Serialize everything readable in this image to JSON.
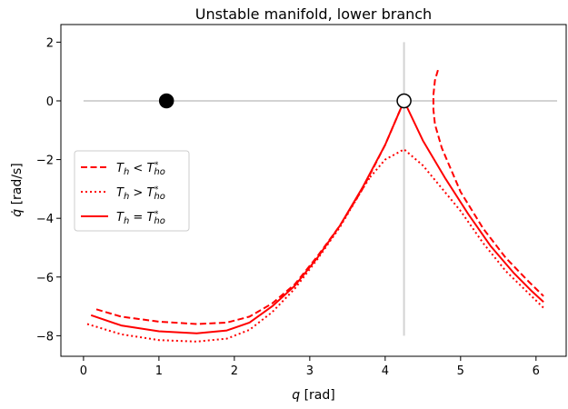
{
  "chart_data": {
    "type": "line",
    "title": "Unstable manifold, lower branch",
    "xlabel_var": "q",
    "xlabel_unit": "[rad]",
    "ylabel_var": "q̇",
    "ylabel_unit": "[rad/s]",
    "xlim": [
      -0.3,
      6.4
    ],
    "ylim": [
      -8.7,
      2.6
    ],
    "xticks": [
      0,
      1,
      2,
      3,
      4,
      5,
      6
    ],
    "yticks": [
      2,
      0,
      -2,
      -4,
      -6,
      -8
    ],
    "ytick_labels": [
      "2",
      "0",
      "−2",
      "−4",
      "−6",
      "−8"
    ],
    "grid": false,
    "legend_position": "center-left",
    "reference_lines": {
      "color": "#d3d3d3",
      "horizontal": {
        "y": 0,
        "x_range": [
          0,
          6.28
        ]
      },
      "vertical": {
        "x": 4.25,
        "y_range": [
          -8.0,
          2.0
        ]
      }
    },
    "equilibria": [
      {
        "x": 1.1,
        "y": 0,
        "marker": "filled",
        "meaning": "stable"
      },
      {
        "x": 4.25,
        "y": 0,
        "marker": "open",
        "meaning": "unstable"
      }
    ],
    "series": [
      {
        "name_main": "T",
        "name_sub": "h",
        "name_rel": "<",
        "name_main2": "T",
        "name_sub2": "ho",
        "name_sup2": "*",
        "style": "dashed",
        "color": "#ff0000",
        "segments": [
          [
            [
              0.17,
              -7.1
            ],
            [
              0.5,
              -7.35
            ],
            [
              1.0,
              -7.52
            ],
            [
              1.5,
              -7.6
            ],
            [
              1.9,
              -7.55
            ],
            [
              2.2,
              -7.35
            ],
            [
              2.5,
              -6.9
            ],
            [
              2.8,
              -6.25
            ],
            [
              3.1,
              -5.3
            ],
            [
              3.4,
              -4.25
            ],
            [
              3.7,
              -3.0
            ],
            [
              4.0,
              -1.5
            ],
            [
              4.25,
              0.0
            ]
          ],
          [
            [
              4.7,
              1.05
            ],
            [
              4.66,
              0.7
            ],
            [
              4.64,
              0.2
            ],
            [
              4.64,
              -0.3
            ],
            [
              4.66,
              -0.8
            ],
            [
              4.75,
              -1.6
            ],
            [
              5.0,
              -3.1
            ],
            [
              5.3,
              -4.35
            ],
            [
              5.6,
              -5.35
            ],
            [
              5.9,
              -6.15
            ],
            [
              6.1,
              -6.65
            ]
          ]
        ]
      },
      {
        "name_main": "T",
        "name_sub": "h",
        "name_rel": ">",
        "name_main2": "T",
        "name_sub2": "ho",
        "name_sup2": "*",
        "style": "dotted",
        "color": "#ff0000",
        "segments": [
          [
            [
              0.05,
              -7.6
            ],
            [
              0.5,
              -7.95
            ],
            [
              1.0,
              -8.15
            ],
            [
              1.5,
              -8.2
            ],
            [
              1.9,
              -8.1
            ],
            [
              2.2,
              -7.8
            ],
            [
              2.5,
              -7.2
            ],
            [
              2.8,
              -6.4
            ],
            [
              3.1,
              -5.4
            ],
            [
              3.4,
              -4.3
            ],
            [
              3.7,
              -3.0
            ],
            [
              3.8,
              -2.6
            ]
          ],
          [
            [
              3.8,
              -2.6
            ],
            [
              4.0,
              -2.0
            ],
            [
              4.25,
              -1.65
            ],
            [
              4.5,
              -2.2
            ],
            [
              5.0,
              -3.75
            ],
            [
              5.3,
              -4.85
            ],
            [
              5.6,
              -5.8
            ],
            [
              5.9,
              -6.55
            ],
            [
              6.1,
              -7.05
            ]
          ]
        ]
      },
      {
        "name_main": "T",
        "name_sub": "h",
        "name_rel": "=",
        "name_main2": "T",
        "name_sub2": "ho",
        "name_sup2": "*",
        "style": "solid",
        "color": "#ff0000",
        "segments": [
          [
            [
              0.1,
              -7.3
            ],
            [
              0.5,
              -7.65
            ],
            [
              1.0,
              -7.85
            ],
            [
              1.5,
              -7.92
            ],
            [
              1.9,
              -7.82
            ],
            [
              2.2,
              -7.55
            ],
            [
              2.5,
              -7.0
            ],
            [
              2.8,
              -6.3
            ],
            [
              3.1,
              -5.35
            ],
            [
              3.4,
              -4.25
            ],
            [
              3.7,
              -2.95
            ],
            [
              4.0,
              -1.5
            ],
            [
              4.25,
              0.0
            ]
          ],
          [
            [
              4.25,
              0.0
            ],
            [
              4.5,
              -1.35
            ],
            [
              4.8,
              -2.65
            ],
            [
              5.1,
              -3.85
            ],
            [
              5.4,
              -4.95
            ],
            [
              5.7,
              -5.85
            ],
            [
              5.95,
              -6.5
            ],
            [
              6.1,
              -6.85
            ]
          ]
        ]
      }
    ]
  }
}
